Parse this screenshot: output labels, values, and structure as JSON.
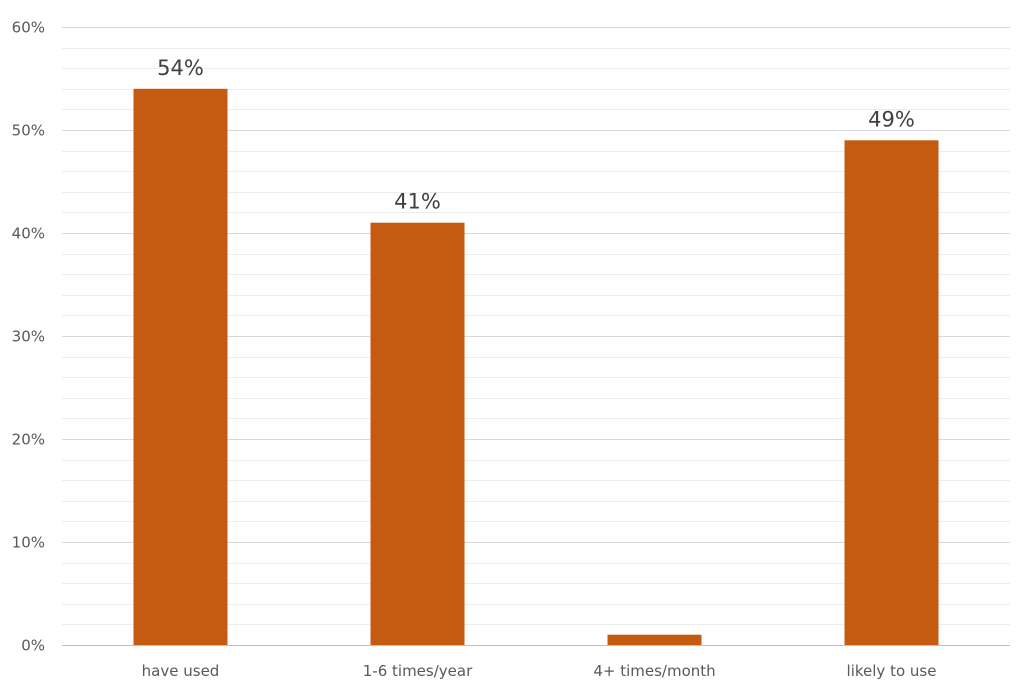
{
  "chart_data": {
    "type": "bar",
    "title": "",
    "xlabel": "",
    "ylabel": "",
    "categories": [
      "have used",
      "1-6 times/year",
      "4+ times/month",
      "likely to use"
    ],
    "values": [
      54,
      41,
      1,
      49
    ],
    "data_labels": [
      "54%",
      "41%",
      "",
      "49%"
    ],
    "ylim": [
      0,
      60
    ],
    "y_ticks": [
      0,
      10,
      20,
      30,
      40,
      50,
      60
    ],
    "y_tick_labels": [
      "0%",
      "10%",
      "20%",
      "30%",
      "40%",
      "50%",
      "60%"
    ],
    "minor_grid_step": 2,
    "grid": true,
    "legend": "none",
    "colors": {
      "bar": "#C55A11",
      "major_grid": "#D9D9D9",
      "minor_grid": "#EDEDED",
      "baseline": "#BFBFBF"
    }
  }
}
